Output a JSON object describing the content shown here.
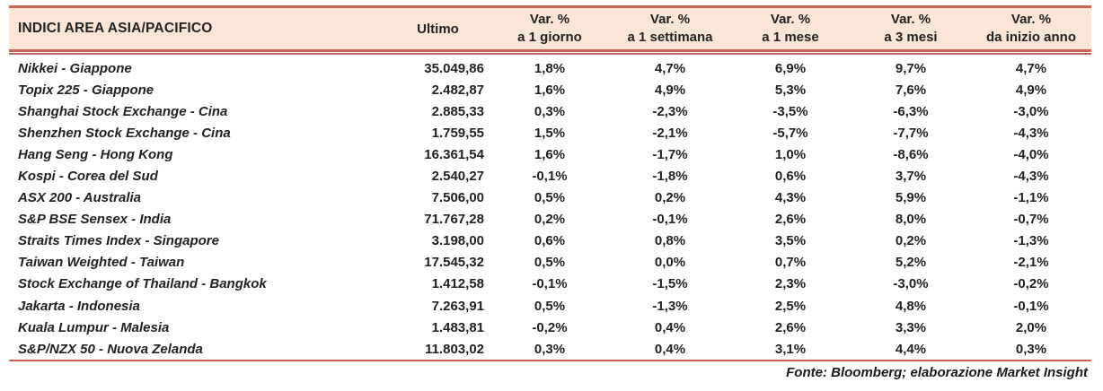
{
  "colors": {
    "header_bg": "#FBE5D6",
    "line": "#CB6553",
    "thin_line": "#B06E68",
    "text": "#222222"
  },
  "table": {
    "header": {
      "title": "INDICI AREA ASIA/PACIFICO",
      "ultimo": "Ultimo",
      "var_columns": [
        {
          "line1": "Var. %",
          "line2": "a 1 giorno"
        },
        {
          "line1": "Var. %",
          "line2": "a 1 settimana"
        },
        {
          "line1": "Var. %",
          "line2": "a 1 mese"
        },
        {
          "line1": "Var. %",
          "line2": "a 3 mesi"
        },
        {
          "line1": "Var. %",
          "line2": "da inizio anno"
        }
      ]
    },
    "rows": [
      {
        "name": "Nikkei - Giappone",
        "ultimo": "35.049,86",
        "vars": [
          "1,8%",
          "4,7%",
          "6,9%",
          "9,7%",
          "4,7%"
        ]
      },
      {
        "name": "Topix 225 - Giappone",
        "ultimo": "2.482,87",
        "vars": [
          "1,6%",
          "4,9%",
          "5,3%",
          "7,6%",
          "4,9%"
        ]
      },
      {
        "name": "Shanghai Stock Exchange - Cina",
        "ultimo": "2.885,33",
        "vars": [
          "0,3%",
          "-2,3%",
          "-3,5%",
          "-6,3%",
          "-3,0%"
        ]
      },
      {
        "name": "Shenzhen Stock Exchange - Cina",
        "ultimo": "1.759,55",
        "vars": [
          "1,5%",
          "-2,1%",
          "-5,7%",
          "-7,7%",
          "-4,3%"
        ]
      },
      {
        "name": "Hang Seng - Hong Kong",
        "ultimo": "16.361,54",
        "vars": [
          "1,6%",
          "-1,7%",
          "1,0%",
          "-8,6%",
          "-4,0%"
        ]
      },
      {
        "name": "Kospi - Corea del Sud",
        "ultimo": "2.540,27",
        "vars": [
          "-0,1%",
          "-1,8%",
          "0,6%",
          "3,7%",
          "-4,3%"
        ]
      },
      {
        "name": "ASX 200 - Australia",
        "ultimo": "7.506,00",
        "vars": [
          "0,5%",
          "0,2%",
          "4,3%",
          "5,9%",
          "-1,1%"
        ]
      },
      {
        "name": "S&P BSE Sensex - India",
        "ultimo": "71.767,28",
        "vars": [
          "0,2%",
          "-0,1%",
          "2,6%",
          "8,0%",
          "-0,7%"
        ]
      },
      {
        "name": "Straits Times Index - Singapore",
        "ultimo": "3.198,00",
        "vars": [
          "0,6%",
          "0,8%",
          "3,5%",
          "0,2%",
          "-1,3%"
        ]
      },
      {
        "name": "Taiwan Weighted - Taiwan",
        "ultimo": "17.545,32",
        "vars": [
          "0,5%",
          "0,0%",
          "0,7%",
          "5,2%",
          "-2,1%"
        ]
      },
      {
        "name": "Stock Exchange of Thailand - Bangkok",
        "ultimo": "1.412,58",
        "vars": [
          "-0,1%",
          "-1,5%",
          "2,3%",
          "-3,0%",
          "-0,2%"
        ]
      },
      {
        "name": "Jakarta - Indonesia",
        "ultimo": "7.263,91",
        "vars": [
          "0,5%",
          "-1,3%",
          "2,5%",
          "4,8%",
          "-0,1%"
        ]
      },
      {
        "name": "Kuala Lumpur - Malesia",
        "ultimo": "1.483,81",
        "vars": [
          "-0,2%",
          "0,4%",
          "2,6%",
          "3,3%",
          "2,0%"
        ]
      },
      {
        "name": "S&P/NZX 50 - Nuova Zelanda",
        "ultimo": "11.803,02",
        "vars": [
          "0,3%",
          "0,4%",
          "3,1%",
          "4,4%",
          "0,3%"
        ]
      }
    ],
    "footer": "Fonte: Bloomberg; elaborazione Market Insight"
  }
}
